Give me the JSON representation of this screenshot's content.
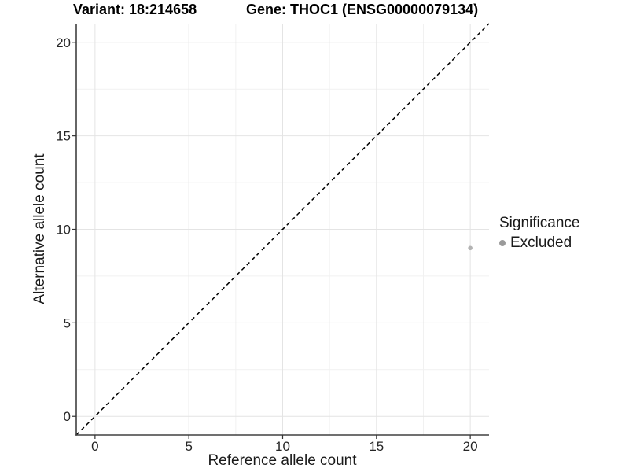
{
  "header": {
    "variant": "Variant: 18:214658",
    "gene": "Gene: THOC1 (ENSG00000079134)"
  },
  "chart_data": {
    "type": "scatter",
    "title": "Variant: 18:214658    Gene: THOC1 (ENSG00000079134)",
    "xlabel": "Reference allele count",
    "ylabel": "Alternative allele count",
    "xlim": [
      -1,
      21
    ],
    "ylim": [
      -1,
      21
    ],
    "x_major_ticks": [
      0,
      5,
      10,
      15,
      20
    ],
    "y_major_ticks": [
      0,
      5,
      10,
      15,
      20
    ],
    "x_minor_ticks": [
      2.5,
      7.5,
      12.5,
      17.5
    ],
    "y_minor_ticks": [
      2.5,
      7.5,
      12.5,
      17.5
    ],
    "grid": true,
    "reference_line": {
      "slope": 1,
      "intercept": 0,
      "style": "dashed",
      "color": "#000000"
    },
    "points": [
      {
        "x": 20,
        "y": 9,
        "significance": "Excluded",
        "color": "#b3b3b3",
        "radius": 2.8
      }
    ],
    "legend": {
      "title": "Significance",
      "position": "right",
      "items": [
        {
          "label": "Excluded",
          "color": "#9a9a9a"
        }
      ]
    },
    "style": {
      "axis_line_color": "#404040",
      "tick_color": "#333333",
      "tick_label_color": "#262626",
      "grid_major_color": "#e4e4e4",
      "grid_minor_color": "#f1f1f1",
      "background": "#ffffff"
    }
  }
}
